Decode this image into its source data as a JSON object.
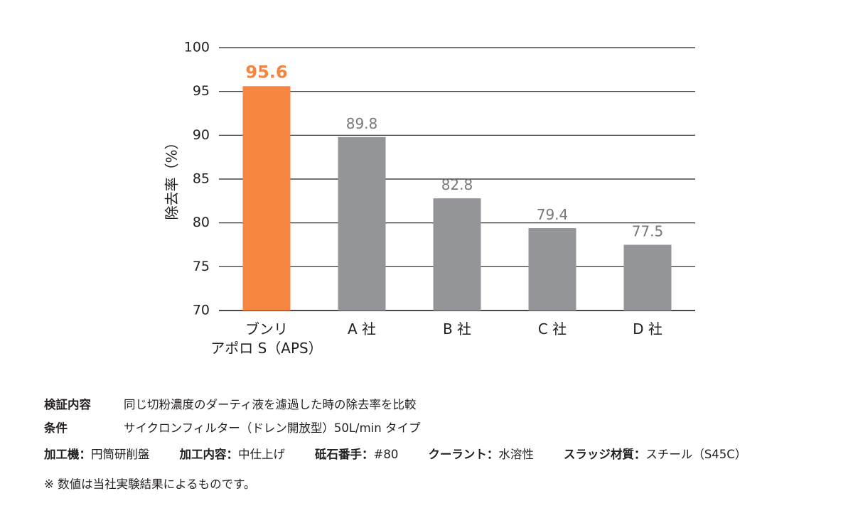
{
  "chart_data": {
    "type": "bar",
    "ylabel": "除去率（%）",
    "ylim": [
      70,
      100
    ],
    "yticks": [
      70,
      75,
      80,
      85,
      90,
      95,
      100
    ],
    "grid": true,
    "categories": [
      "ブンリ\nアポロ S（APS）",
      "A 社",
      "B 社",
      "C 社",
      "D 社"
    ],
    "values": [
      95.6,
      89.8,
      82.8,
      79.4,
      77.5
    ],
    "value_labels": [
      "95.6",
      "89.8",
      "82.8",
      "79.4",
      "77.5"
    ],
    "highlight_index": 0,
    "colors": {
      "highlight": "#f58540",
      "bar": "#939598",
      "axis": "#231f20"
    }
  },
  "notes": {
    "purpose_key": "検証内容",
    "purpose_value": "同じ切粉濃度のダーティ液を濾過した時の除去率を比較",
    "conditions_key": "条件",
    "conditions_value": "サイクロンフィルター（ドレン開放型）50L/min タイプ",
    "machine_key": "加工機：",
    "machine_value": "円筒研削盤",
    "process_key": "加工内容：",
    "process_value": "中仕上げ",
    "wheel_key": "砥石番手：",
    "wheel_value": "#80",
    "coolant_key": "クーラント：",
    "coolant_value": "水溶性",
    "sludge_key": "スラッジ材質：",
    "sludge_value": "スチール（S45C）",
    "footnote": "※ 数値は当社実験結果によるものです。"
  }
}
